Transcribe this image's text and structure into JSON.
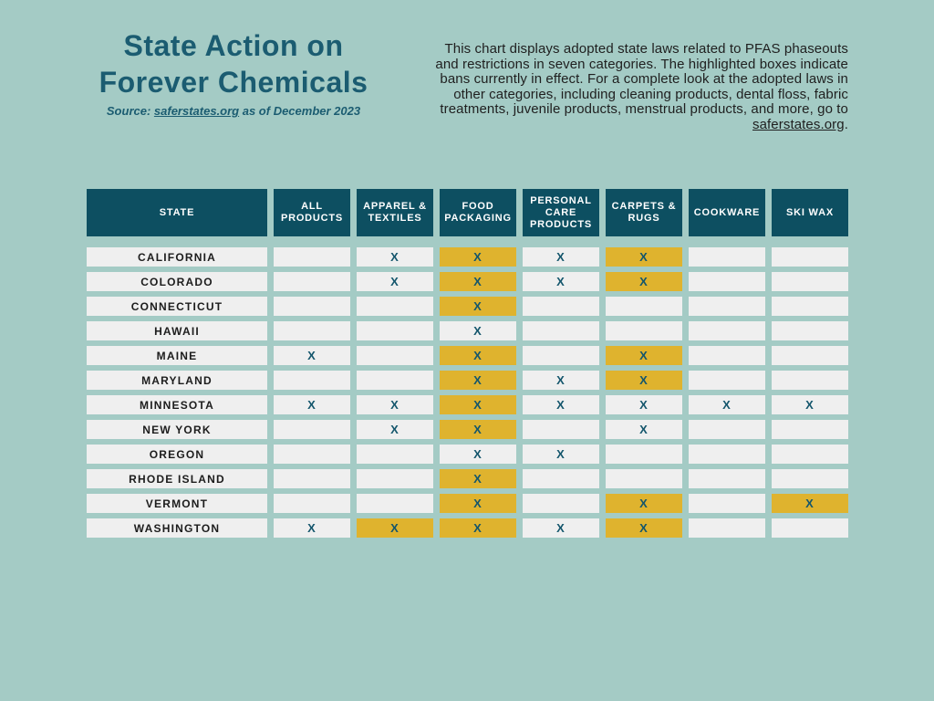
{
  "colors": {
    "background": "#a4cbc5",
    "header_bg": "#0d4f61",
    "header_text": "#ffffff",
    "cell_bg": "#efefef",
    "highlight": "#dfb32e",
    "mark_text": "#14566c",
    "title_text": "#1b5c71",
    "body_text": "#1f1f1f"
  },
  "header": {
    "title_lines": [
      "State Action on",
      "Forever Chemicals"
    ],
    "source_prefix": "Source: ",
    "source_link": "saferstates.org",
    "source_suffix": " as of December 2023",
    "description_text": "This chart displays adopted state laws related to PFAS phaseouts and restrictions in seven categories. The highlighted boxes indicate bans currently in effect. For a complete look at the adopted laws in other categories, including cleaning products, dental floss, fabric treatments, juvenile products, menstrual products, and more, go to ",
    "description_link": "saferstates.org",
    "description_suffix": "."
  },
  "chart_data": {
    "type": "table",
    "title": "State Action on Forever Chemicals",
    "source_note": "Source: saferstates.org as of December 2023",
    "columns": [
      "STATE",
      "ALL PRODUCTS",
      "APPAREL & TEXTILES",
      "FOOD PACKAGING",
      "PERSONAL CARE PRODUCTS",
      "CARPETS & RUGS",
      "COOKWARE",
      "SKI WAX"
    ],
    "mark_legend": {
      "X": "adopted state law",
      "XH": "adopted state law, highlighted box = ban currently in effect",
      "": "no adopted law shown"
    },
    "rows": [
      {
        "state": "CALIFORNIA",
        "cells": [
          "",
          "X",
          "XH",
          "X",
          "XH",
          "",
          ""
        ]
      },
      {
        "state": "COLORADO",
        "cells": [
          "",
          "X",
          "XH",
          "X",
          "XH",
          "",
          ""
        ]
      },
      {
        "state": "CONNECTICUT",
        "cells": [
          "",
          "",
          "XH",
          "",
          "",
          "",
          ""
        ]
      },
      {
        "state": "HAWAII",
        "cells": [
          "",
          "",
          "X",
          "",
          "",
          "",
          ""
        ]
      },
      {
        "state": "MAINE",
        "cells": [
          "X",
          "",
          "XH",
          "",
          "XH",
          "",
          ""
        ]
      },
      {
        "state": "MARYLAND",
        "cells": [
          "",
          "",
          "XH",
          "X",
          "XH",
          "",
          ""
        ]
      },
      {
        "state": "MINNESOTA",
        "cells": [
          "X",
          "X",
          "XH",
          "X",
          "X",
          "X",
          "X"
        ]
      },
      {
        "state": "NEW YORK",
        "cells": [
          "",
          "X",
          "XH",
          "",
          "X",
          "",
          ""
        ]
      },
      {
        "state": "OREGON",
        "cells": [
          "",
          "",
          "X",
          "X",
          "",
          "",
          ""
        ]
      },
      {
        "state": "RHODE ISLAND",
        "cells": [
          "",
          "",
          "XH",
          "",
          "",
          "",
          ""
        ]
      },
      {
        "state": "VERMONT",
        "cells": [
          "",
          "",
          "XH",
          "",
          "XH",
          "",
          "XH"
        ]
      },
      {
        "state": "WASHINGTON",
        "cells": [
          "X",
          "XH",
          "XH",
          "X",
          "XH",
          "",
          ""
        ]
      }
    ]
  }
}
